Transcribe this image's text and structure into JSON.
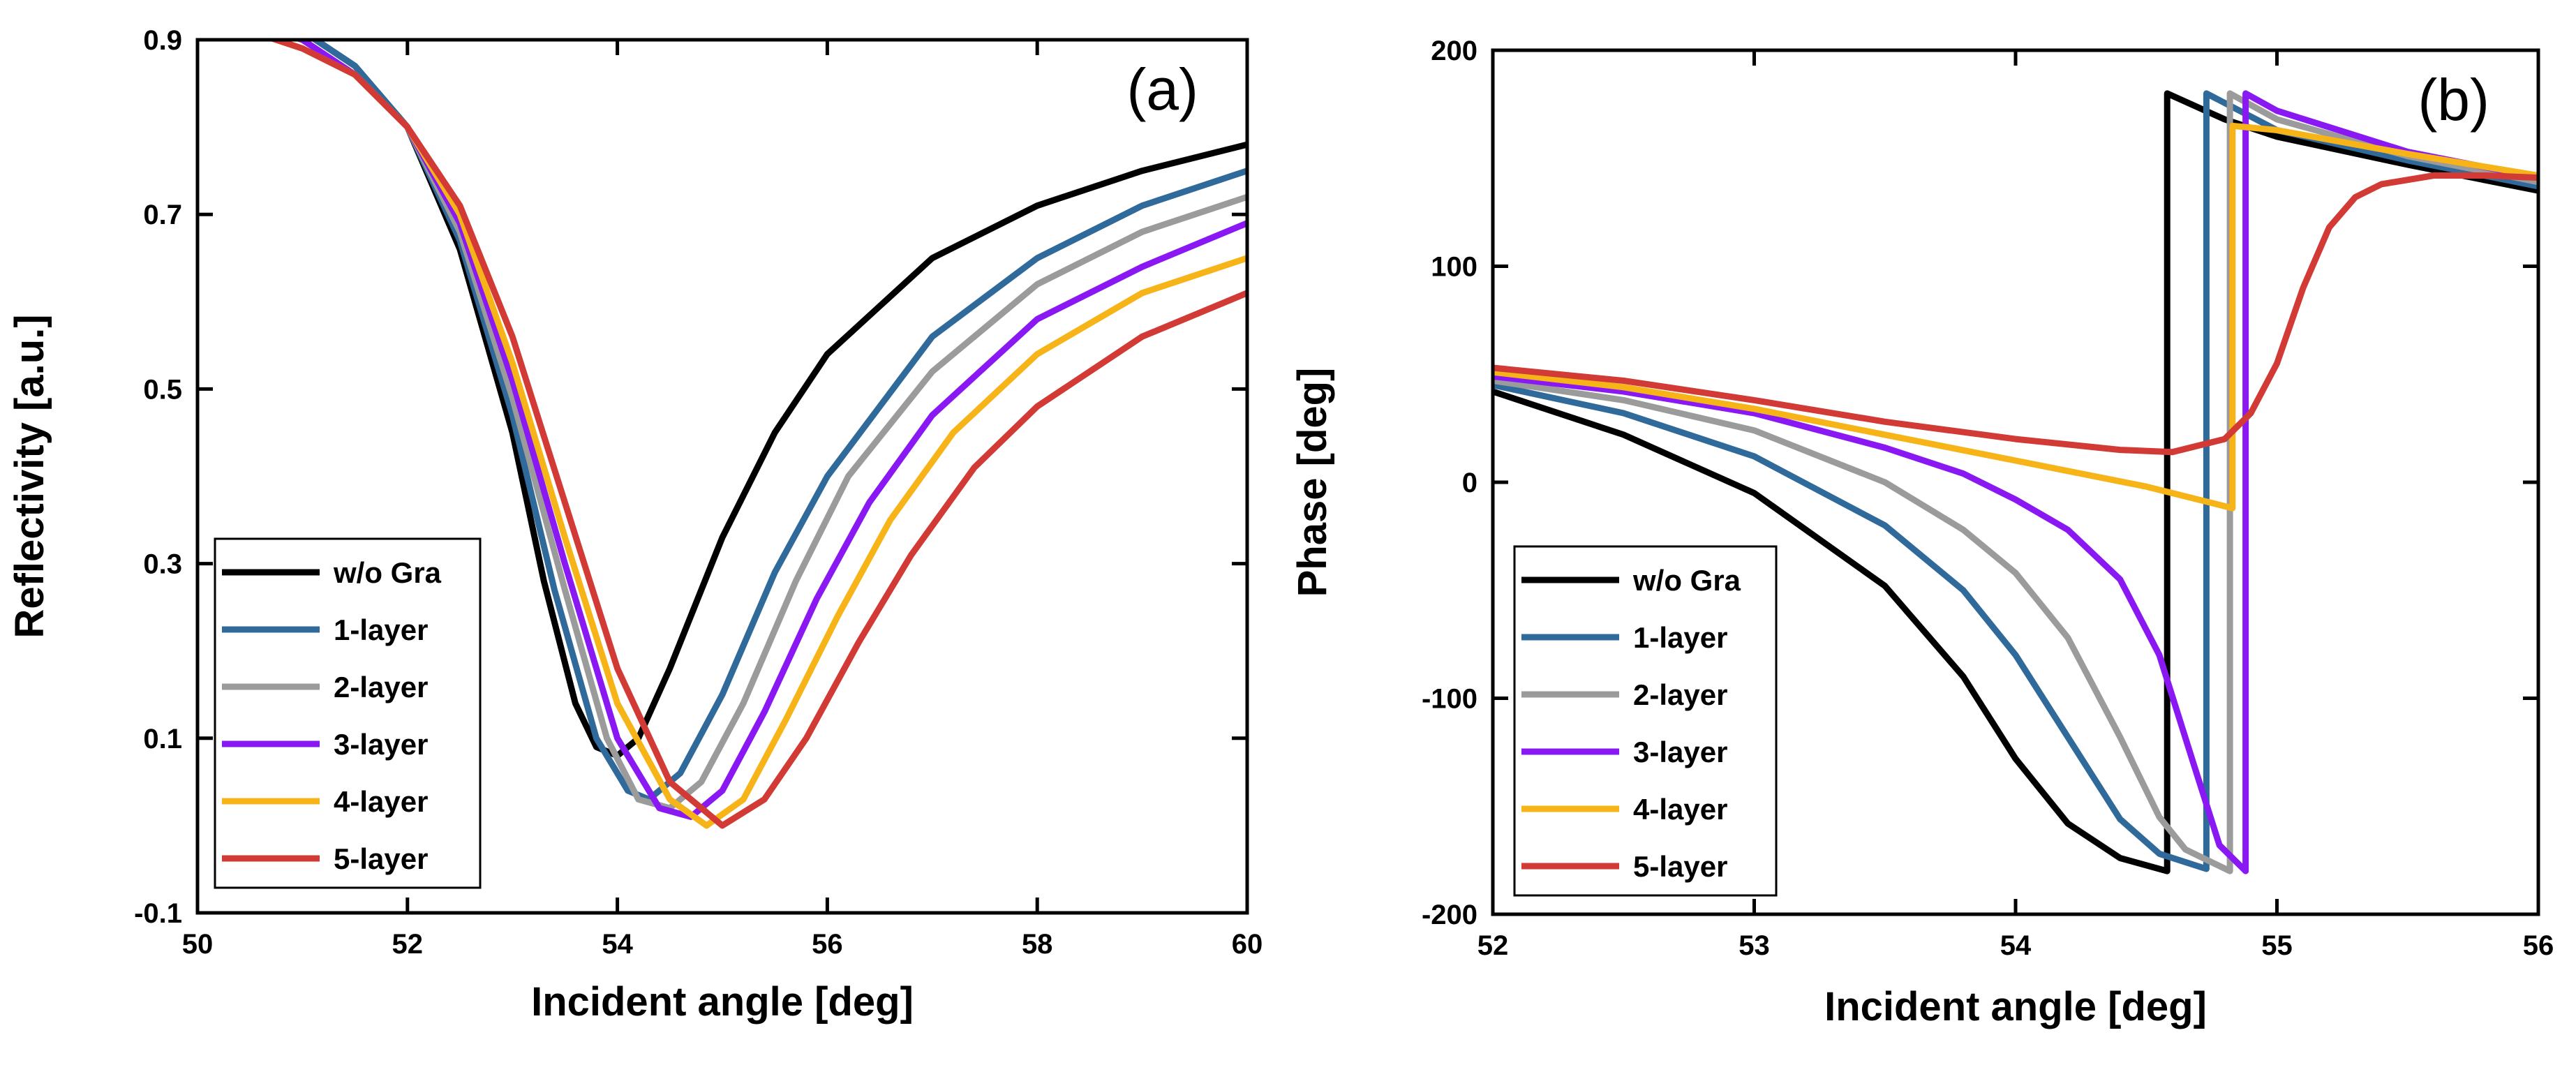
{
  "chart_data": [
    {
      "type": "line",
      "panel_label": "(a)",
      "xlabel": "Incident angle [deg]",
      "ylabel": "Reflectivity [a.u.]",
      "xlim": [
        50,
        60
      ],
      "ylim": [
        -0.1,
        0.9
      ],
      "xticks": [
        50,
        52,
        54,
        56,
        58,
        60
      ],
      "xtick_labels": [
        "50",
        "52",
        "54",
        "56",
        "58",
        "60"
      ],
      "yticks": [
        -0.1,
        0.1,
        0.3,
        0.5,
        0.7,
        0.9
      ],
      "ytick_labels": [
        "-0.1",
        "0.1",
        "0.3",
        "0.5",
        "0.7",
        "0.9"
      ],
      "grid": false,
      "legend_position": "bottom-left",
      "series": [
        {
          "name": "w/o Gra",
          "color": "#000000",
          "x": [
            50.5,
            51.0,
            51.5,
            52.0,
            52.5,
            53.0,
            53.3,
            53.6,
            53.8,
            54.0,
            54.2,
            54.5,
            55.0,
            55.5,
            56.0,
            57.0,
            58.0,
            59.0,
            60.0
          ],
          "y": [
            0.93,
            0.91,
            0.87,
            0.8,
            0.66,
            0.45,
            0.28,
            0.14,
            0.09,
            0.08,
            0.1,
            0.18,
            0.33,
            0.45,
            0.54,
            0.65,
            0.71,
            0.75,
            0.78
          ]
        },
        {
          "name": "1-layer",
          "color": "#2f6a9a",
          "x": [
            50.5,
            51.0,
            51.5,
            52.0,
            52.5,
            53.0,
            53.4,
            53.8,
            54.1,
            54.3,
            54.6,
            55.0,
            55.5,
            56.0,
            57.0,
            58.0,
            59.0,
            60.0
          ],
          "y": [
            0.93,
            0.91,
            0.87,
            0.8,
            0.67,
            0.47,
            0.27,
            0.1,
            0.04,
            0.03,
            0.06,
            0.15,
            0.29,
            0.4,
            0.56,
            0.65,
            0.71,
            0.75
          ]
        },
        {
          "name": "2-layer",
          "color": "#9b9b9b",
          "x": [
            50.5,
            51.0,
            51.5,
            52.0,
            52.5,
            53.0,
            53.5,
            53.9,
            54.2,
            54.5,
            54.8,
            55.2,
            55.7,
            56.2,
            57.0,
            58.0,
            59.0,
            60.0
          ],
          "y": [
            0.92,
            0.9,
            0.86,
            0.8,
            0.68,
            0.49,
            0.27,
            0.1,
            0.03,
            0.02,
            0.05,
            0.14,
            0.28,
            0.4,
            0.52,
            0.62,
            0.68,
            0.72
          ]
        },
        {
          "name": "3-layer",
          "color": "#8a18f2",
          "x": [
            50.5,
            51.0,
            51.5,
            52.0,
            52.5,
            53.0,
            53.5,
            54.0,
            54.4,
            54.7,
            55.0,
            55.4,
            55.9,
            56.4,
            57.0,
            58.0,
            59.0,
            60.0
          ],
          "y": [
            0.92,
            0.9,
            0.86,
            0.8,
            0.69,
            0.51,
            0.3,
            0.1,
            0.02,
            0.01,
            0.04,
            0.13,
            0.26,
            0.37,
            0.47,
            0.58,
            0.64,
            0.69
          ]
        },
        {
          "name": "4-layer",
          "color": "#f7b418",
          "x": [
            50.5,
            51.0,
            51.5,
            52.0,
            52.5,
            53.0,
            53.5,
            54.0,
            54.5,
            54.85,
            55.2,
            55.6,
            56.1,
            56.6,
            57.2,
            58.0,
            59.0,
            60.0
          ],
          "y": [
            0.91,
            0.89,
            0.86,
            0.8,
            0.7,
            0.53,
            0.33,
            0.14,
            0.03,
            0.0,
            0.03,
            0.12,
            0.24,
            0.35,
            0.45,
            0.54,
            0.61,
            0.65
          ]
        },
        {
          "name": "5-layer",
          "color": "#d23a35",
          "x": [
            50.5,
            51.0,
            51.5,
            52.0,
            52.5,
            53.0,
            53.5,
            54.0,
            54.5,
            55.0,
            55.4,
            55.8,
            56.3,
            56.8,
            57.4,
            58.0,
            59.0,
            60.0
          ],
          "y": [
            0.91,
            0.89,
            0.86,
            0.8,
            0.71,
            0.56,
            0.37,
            0.18,
            0.05,
            0.0,
            0.03,
            0.1,
            0.21,
            0.31,
            0.41,
            0.48,
            0.56,
            0.61
          ]
        }
      ]
    },
    {
      "type": "line",
      "panel_label": "(b)",
      "xlabel": "Incident angle [deg]",
      "ylabel": "Phase [deg]",
      "xlim": [
        52,
        56
      ],
      "ylim": [
        -200,
        200
      ],
      "xticks": [
        52,
        53,
        54,
        55,
        56
      ],
      "xtick_labels": [
        "52",
        "53",
        "54",
        "55",
        "56"
      ],
      "yticks": [
        -200,
        -100,
        0,
        100,
        200
      ],
      "ytick_labels": [
        "-200",
        "-100",
        "0",
        "100",
        "200"
      ],
      "grid": false,
      "legend_position": "bottom-left",
      "series": [
        {
          "name": "w/o Gra",
          "color": "#000000",
          "x": [
            52.0,
            52.5,
            53.0,
            53.5,
            53.8,
            54.0,
            54.2,
            54.4,
            54.58,
            54.58,
            54.8,
            55.0,
            55.5,
            56.0
          ],
          "y": [
            42,
            22,
            -5,
            -48,
            -90,
            -128,
            -158,
            -174,
            -180,
            180,
            168,
            160,
            147,
            135
          ]
        },
        {
          "name": "1-layer",
          "color": "#2f6a9a",
          "x": [
            52.0,
            52.5,
            53.0,
            53.5,
            53.8,
            54.0,
            54.2,
            54.4,
            54.55,
            54.73,
            54.73,
            55.0,
            55.5,
            56.0
          ],
          "y": [
            45,
            32,
            12,
            -20,
            -50,
            -80,
            -118,
            -156,
            -172,
            -179,
            180,
            163,
            149,
            137
          ]
        },
        {
          "name": "2-layer",
          "color": "#9b9b9b",
          "x": [
            52.0,
            52.5,
            53.0,
            53.5,
            53.8,
            54.0,
            54.2,
            54.4,
            54.55,
            54.65,
            54.82,
            54.82,
            55.0,
            55.5,
            56.0
          ],
          "y": [
            47,
            38,
            24,
            0,
            -22,
            -42,
            -72,
            -118,
            -155,
            -170,
            -180,
            180,
            168,
            151,
            139
          ]
        },
        {
          "name": "3-layer",
          "color": "#8a18f2",
          "x": [
            52.0,
            52.5,
            53.0,
            53.5,
            53.8,
            54.0,
            54.2,
            54.4,
            54.55,
            54.68,
            54.78,
            54.88,
            54.88,
            55.0,
            55.5,
            56.0
          ],
          "y": [
            49,
            42,
            32,
            16,
            4,
            -8,
            -22,
            -45,
            -80,
            -130,
            -168,
            -180,
            180,
            172,
            153,
            141
          ]
        },
        {
          "name": "4-layer",
          "color": "#f7b418",
          "x": [
            52.0,
            52.5,
            53.0,
            53.5,
            54.0,
            54.5,
            54.83,
            54.83,
            55.0,
            55.5,
            56.0
          ],
          "y": [
            51,
            44,
            34,
            22,
            10,
            -2,
            -12,
            165,
            163,
            152,
            142
          ]
        },
        {
          "name": "5-layer",
          "color": "#d23a35",
          "x": [
            52.0,
            52.5,
            53.0,
            53.5,
            54.0,
            54.4,
            54.6,
            54.8,
            54.9,
            55.0,
            55.1,
            55.2,
            55.3,
            55.4,
            55.6,
            55.8,
            56.0
          ],
          "y": [
            53,
            47,
            38,
            28,
            20,
            15,
            14,
            20,
            32,
            55,
            90,
            118,
            132,
            138,
            142,
            142,
            141
          ]
        }
      ]
    }
  ]
}
